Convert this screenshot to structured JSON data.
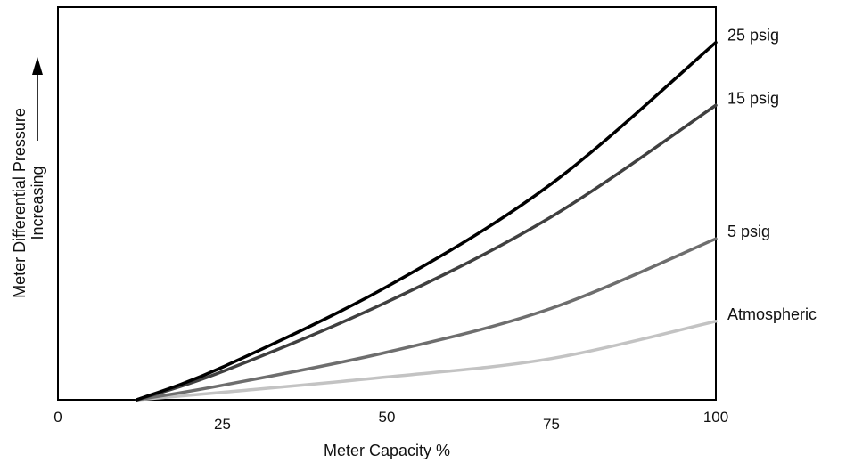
{
  "chart_data": {
    "type": "line",
    "title": "",
    "xlabel": "Meter Capacity %",
    "ylabel_line1": "Meter Differential Pressure",
    "ylabel_line2": "Increasing",
    "ylabel_arrow": "→",
    "xlim": [
      0,
      100
    ],
    "ylim": [
      0,
      100
    ],
    "x_ticks": [
      {
        "value": 0,
        "label": "0"
      },
      {
        "value": 25,
        "label": "25"
      },
      {
        "value": 50,
        "label": "50"
      },
      {
        "value": 75,
        "label": "75"
      },
      {
        "value": 100,
        "label": "100"
      }
    ],
    "grid": false,
    "legend": "none",
    "series": [
      {
        "name": "25 psig",
        "color": "#000000",
        "x": [
          12,
          25,
          50,
          75,
          100
        ],
        "y": [
          0,
          8.3,
          28.8,
          55,
          91
        ]
      },
      {
        "name": "15 psig",
        "color": "#404040",
        "x": [
          12,
          25,
          50,
          75,
          100
        ],
        "y": [
          0,
          7.2,
          24.9,
          46.6,
          75
        ]
      },
      {
        "name": "5 psig",
        "color": "#6e6e6e",
        "x": [
          12,
          25,
          50,
          75,
          100
        ],
        "y": [
          0,
          3.7,
          12.1,
          23.3,
          41
        ]
      },
      {
        "name": "Atmospheric",
        "color": "#c3c3c3",
        "x": [
          12,
          25,
          50,
          75,
          100
        ],
        "y": [
          0,
          1.9,
          5.8,
          10.5,
          20
        ]
      }
    ]
  }
}
